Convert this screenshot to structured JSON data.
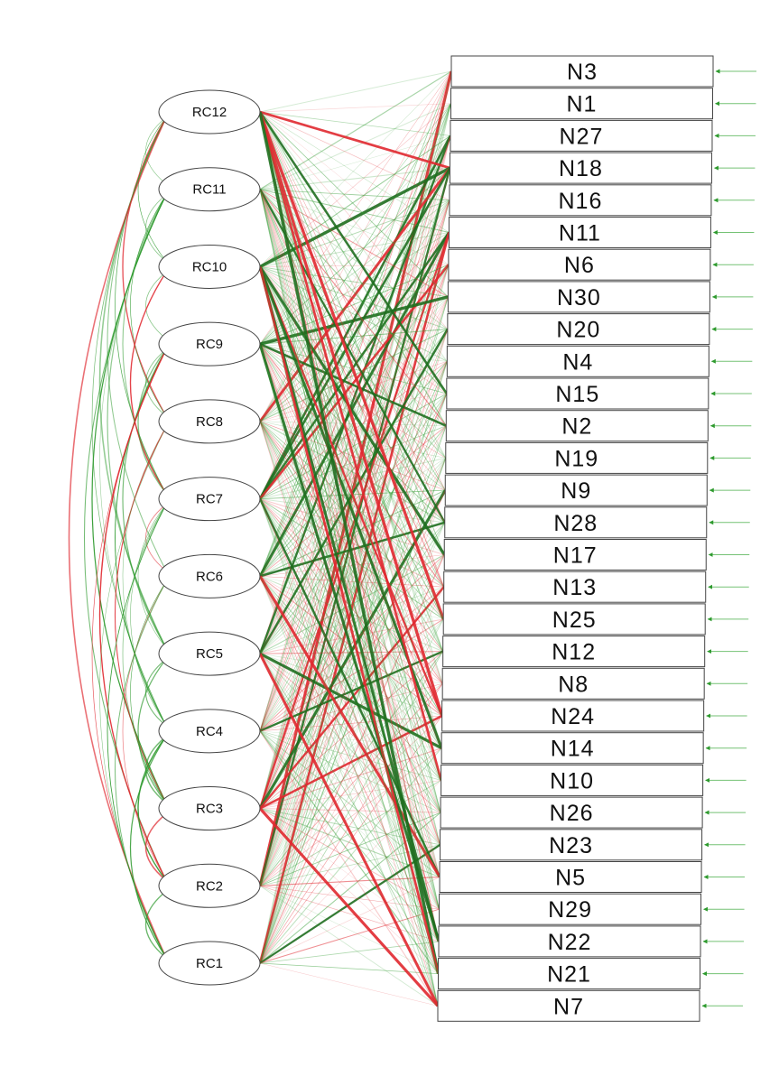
{
  "latents": [
    "RC12",
    "RC11",
    "RC10",
    "RC9",
    "RC8",
    "RC7",
    "RC6",
    "RC5",
    "RC4",
    "RC3",
    "RC2",
    "RC1"
  ],
  "items": [
    "N3",
    "N1",
    "N27",
    "N18",
    "N16",
    "N11",
    "N6",
    "N30",
    "N20",
    "N4",
    "N15",
    "N2",
    "N19",
    "N9",
    "N28",
    "N17",
    "N13",
    "N25",
    "N12",
    "N8",
    "N24",
    "N14",
    "N10",
    "N26",
    "N23",
    "N5",
    "N29",
    "N22",
    "N21",
    "N7"
  ],
  "colors": {
    "positive": "#2e9a2e",
    "positive_strong": "#1f6e1f",
    "negative": "#e0282f",
    "node_fill": "#ffffff",
    "node_stroke": "#444444",
    "error_arrow": "#3aa83a"
  },
  "icons": {
    "latent": "ellipse-node",
    "item": "rectangle-node",
    "loading": "directed-arrow",
    "covariance": "curved-double-arrow",
    "residual": "error-arrow"
  }
}
